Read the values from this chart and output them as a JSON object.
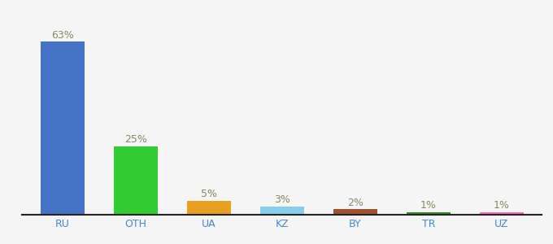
{
  "categories": [
    "RU",
    "OTH",
    "UA",
    "KZ",
    "BY",
    "TR",
    "UZ"
  ],
  "values": [
    63,
    25,
    5,
    3,
    2,
    1,
    1
  ],
  "bar_colors": [
    "#4472C4",
    "#33CC33",
    "#E8A020",
    "#87CEEB",
    "#A0522D",
    "#2E8B22",
    "#FF69B4"
  ],
  "labels": [
    "63%",
    "25%",
    "5%",
    "3%",
    "2%",
    "1%",
    "1%"
  ],
  "background_color": "#f5f5f5",
  "label_fontsize": 9,
  "tick_fontsize": 9,
  "tick_color": "#4488CC",
  "label_color": "#888866",
  "bar_width": 0.6,
  "ylim": [
    0,
    72
  ],
  "xlim_left": -0.55,
  "xlim_right": 6.55
}
